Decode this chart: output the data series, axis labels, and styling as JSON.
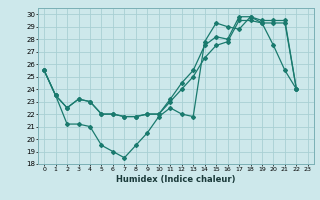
{
  "xlabel": "Humidex (Indice chaleur)",
  "bg_color": "#cde8eb",
  "grid_color": "#a8d0d4",
  "line_color": "#1a7a6e",
  "xlim": [
    -0.5,
    23.5
  ],
  "ylim": [
    18,
    30.5
  ],
  "yticks": [
    18,
    19,
    20,
    21,
    22,
    23,
    24,
    25,
    26,
    27,
    28,
    29,
    30
  ],
  "xticks": [
    0,
    1,
    2,
    3,
    4,
    5,
    6,
    7,
    8,
    9,
    10,
    11,
    12,
    13,
    14,
    15,
    16,
    17,
    18,
    19,
    20,
    21,
    22,
    23
  ],
  "line1_x": [
    0,
    1,
    2,
    3,
    4,
    5,
    6,
    7,
    8,
    9,
    10,
    11,
    12,
    13,
    14,
    15,
    16,
    17,
    18,
    19,
    20,
    21,
    22
  ],
  "line1_y": [
    25.5,
    23.5,
    22.5,
    23.2,
    23.0,
    22.0,
    22.0,
    21.8,
    21.8,
    22.0,
    22.0,
    23.0,
    24.0,
    25.0,
    26.5,
    27.5,
    27.8,
    29.5,
    29.5,
    29.3,
    29.3,
    29.3,
    24.0
  ],
  "line2_x": [
    0,
    1,
    2,
    3,
    4,
    5,
    6,
    7,
    8,
    9,
    10,
    11,
    12,
    13,
    14,
    15,
    16,
    17,
    18,
    19,
    20,
    21,
    22
  ],
  "line2_y": [
    25.5,
    23.5,
    22.5,
    23.2,
    23.0,
    22.0,
    22.0,
    21.8,
    21.8,
    22.0,
    22.0,
    23.2,
    24.5,
    25.5,
    27.5,
    28.2,
    28.0,
    29.8,
    29.8,
    29.5,
    29.5,
    29.5,
    24.0
  ],
  "line3_x": [
    0,
    1,
    2,
    3,
    4,
    5,
    6,
    7,
    8,
    9,
    10,
    11,
    12,
    13,
    14,
    15,
    16,
    17,
    18,
    19,
    20,
    21,
    22
  ],
  "line3_y": [
    25.5,
    23.5,
    21.2,
    21.2,
    21.0,
    19.5,
    19.0,
    18.5,
    19.5,
    20.5,
    21.8,
    22.5,
    22.0,
    21.8,
    27.8,
    29.3,
    29.0,
    28.8,
    29.8,
    29.3,
    27.5,
    25.5,
    24.0
  ]
}
